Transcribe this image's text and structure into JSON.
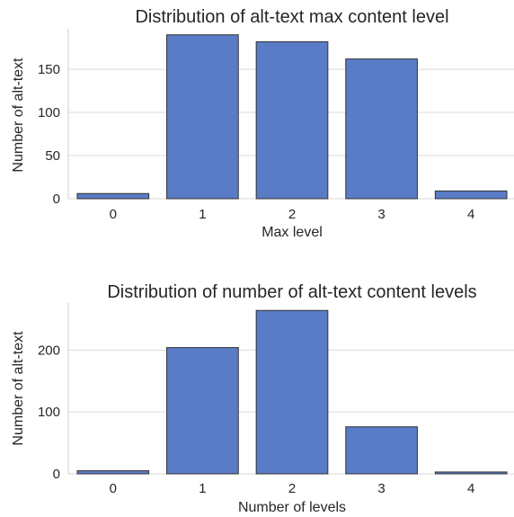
{
  "colors": {
    "bar_fill": "#5a7bc5",
    "bar_edge": "#333333",
    "grid": "#d9d9d9",
    "text": "#262626"
  },
  "chart_data": [
    {
      "type": "bar",
      "title": "Distribution of alt-text max content level",
      "xlabel": "Max level",
      "ylabel": "Number of alt-text",
      "categories": [
        "0",
        "1",
        "2",
        "3",
        "4"
      ],
      "values": [
        6,
        190,
        182,
        162,
        9
      ],
      "ylim": [
        0,
        197
      ],
      "yticks": [
        0,
        50,
        100,
        150
      ],
      "grid": true
    },
    {
      "type": "bar",
      "title": "Distribution of number of alt-text content levels",
      "xlabel": "Number of levels",
      "ylabel": "Number of alt-text",
      "categories": [
        "0",
        "1",
        "2",
        "3",
        "4"
      ],
      "values": [
        5,
        204,
        264,
        76,
        3
      ],
      "ylim": [
        0,
        276
      ],
      "yticks": [
        0,
        100,
        200
      ],
      "grid": true
    }
  ]
}
